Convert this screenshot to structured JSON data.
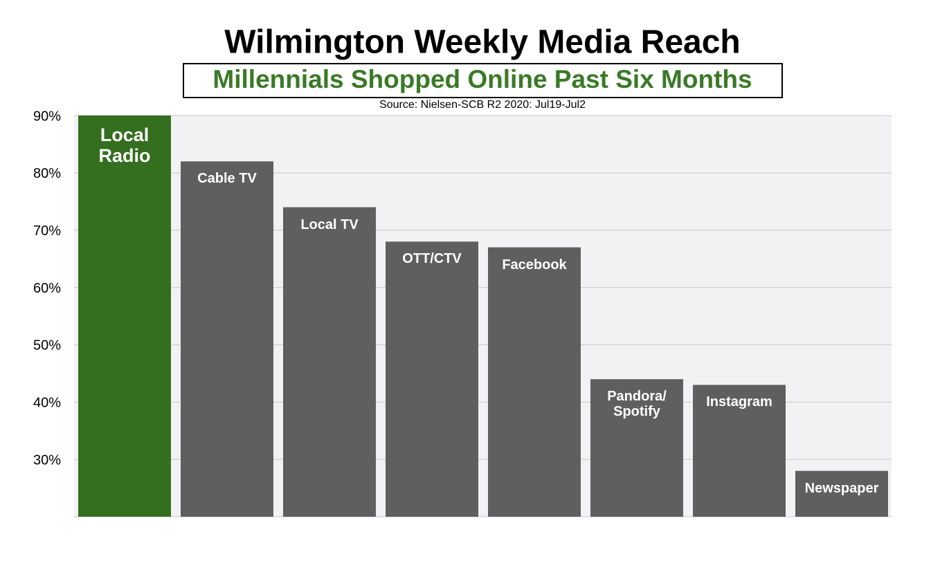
{
  "chart_data": {
    "type": "bar",
    "title": "Wilmington Weekly Media Reach",
    "subtitle": "Millennials Shopped Online Past Six Months",
    "source": "Source: Nielsen-SCB R2 2020: Jul19-Jul2",
    "categories": [
      "Local Radio",
      "Cable TV",
      "Local TV",
      "OTT/CTV",
      "Facebook",
      "Pandora/ Spotify",
      "Instagram",
      "Newspaper"
    ],
    "values": [
      90,
      82,
      74,
      68,
      67,
      44,
      43,
      28
    ],
    "colors": [
      "#346e1f",
      "#5f5f5f",
      "#5f5f5f",
      "#5f5f5f",
      "#5f5f5f",
      "#5f5f5f",
      "#5f5f5f",
      "#5f5f5f"
    ],
    "ylim": [
      20,
      90
    ],
    "yticks": [
      {
        "value": 30,
        "label": "30%"
      },
      {
        "value": 40,
        "label": "40%"
      },
      {
        "value": 50,
        "label": "50%"
      },
      {
        "value": 60,
        "label": "60%"
      },
      {
        "value": 70,
        "label": "70%"
      },
      {
        "value": 80,
        "label": "80%"
      },
      {
        "value": 90,
        "label": "90%"
      }
    ],
    "grid": true
  }
}
